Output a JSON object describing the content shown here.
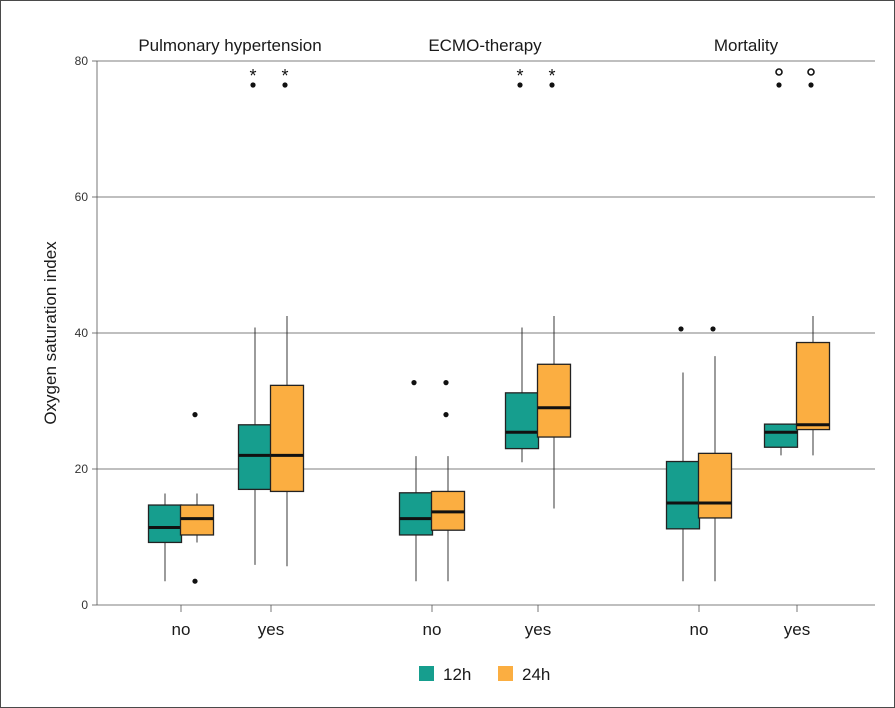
{
  "chart_data": {
    "type": "boxplot",
    "ylabel": "Oxygen saturation index",
    "ylim": [
      0,
      80
    ],
    "yticks": [
      0,
      20,
      40,
      60,
      80
    ],
    "grid": true,
    "legend_position": "bottom-center",
    "legend": [
      {
        "name": "12h",
        "color": "#169e8e"
      },
      {
        "name": "24h",
        "color": "#fbae41"
      }
    ],
    "panels": [
      {
        "title": "Pulmonary hypertension",
        "groups": [
          {
            "label": "no",
            "boxes": [
              {
                "series": "12h",
                "whisker_low": 3.5,
                "q1": 9.2,
                "median": 11.4,
                "q3": 14.7,
                "whisker_high": 16.4,
                "outliers": []
              },
              {
                "series": "24h",
                "whisker_low": 9.2,
                "q1": 10.3,
                "median": 12.7,
                "q3": 14.7,
                "whisker_high": 16.4,
                "outliers": [
                  28.0,
                  3.5
                ]
              }
            ]
          },
          {
            "label": "yes",
            "boxes": [
              {
                "series": "12h",
                "whisker_low": 5.9,
                "q1": 17.0,
                "median": 22.0,
                "q3": 26.5,
                "whisker_high": 40.8,
                "outliers": [],
                "extreme": [
                  "*"
                ]
              },
              {
                "series": "24h",
                "whisker_low": 5.7,
                "q1": 16.7,
                "median": 22.0,
                "q3": 32.3,
                "whisker_high": 42.5,
                "outliers": [],
                "extreme": [
                  "*"
                ]
              }
            ]
          }
        ]
      },
      {
        "title": "ECMO-therapy",
        "groups": [
          {
            "label": "no",
            "boxes": [
              {
                "series": "12h",
                "whisker_low": 3.5,
                "q1": 10.3,
                "median": 12.7,
                "q3": 16.5,
                "whisker_high": 21.9,
                "outliers": [
                  32.7
                ]
              },
              {
                "series": "24h",
                "whisker_low": 3.5,
                "q1": 11.0,
                "median": 13.7,
                "q3": 16.7,
                "whisker_high": 21.9,
                "outliers": [
                  32.7,
                  28.0
                ]
              }
            ]
          },
          {
            "label": "yes",
            "boxes": [
              {
                "series": "12h",
                "whisker_low": 21.0,
                "q1": 23.0,
                "median": 25.4,
                "q3": 31.2,
                "whisker_high": 40.8,
                "outliers": [],
                "extreme": [
                  "*"
                ]
              },
              {
                "series": "24h",
                "whisker_low": 14.2,
                "q1": 24.7,
                "median": 29.0,
                "q3": 35.4,
                "whisker_high": 42.5,
                "outliers": [],
                "extreme": [
                  "*"
                ]
              }
            ]
          }
        ]
      },
      {
        "title": "Mortality",
        "groups": [
          {
            "label": "no",
            "boxes": [
              {
                "series": "12h",
                "whisker_low": 3.5,
                "q1": 11.2,
                "median": 15.0,
                "q3": 21.1,
                "whisker_high": 34.2,
                "outliers": [
                  40.6
                ]
              },
              {
                "series": "24h",
                "whisker_low": 3.5,
                "q1": 12.8,
                "median": 15.0,
                "q3": 22.3,
                "whisker_high": 36.6,
                "outliers": [
                  40.6
                ]
              }
            ]
          },
          {
            "label": "yes",
            "boxes": [
              {
                "series": "12h",
                "whisker_low": 22.0,
                "q1": 23.2,
                "median": 25.4,
                "q3": 26.6,
                "whisker_high": 26.6,
                "outliers": [],
                "extreme": [
                  "o"
                ]
              },
              {
                "series": "24h",
                "whisker_low": 22.0,
                "q1": 25.8,
                "median": 26.5,
                "q3": 38.6,
                "whisker_high": 42.5,
                "outliers": [],
                "extreme": [
                  "o"
                ]
              }
            ]
          }
        ]
      }
    ]
  }
}
